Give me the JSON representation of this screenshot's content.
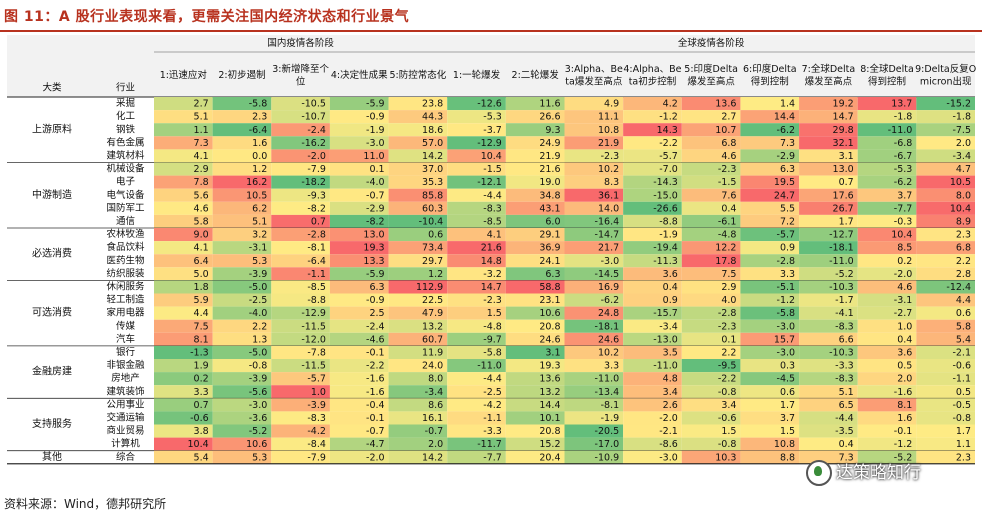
{
  "figure_title": "图 11：A 股行业表现来看，更需关注国内经济状态和行业景气",
  "source": "资料来源：Wind，德邦研究所",
  "watermark": "达策略知行",
  "colors": {
    "title": "#b8321f",
    "high": "#f8696b",
    "mid": "#ffeb84",
    "low": "#63be7b"
  },
  "chart_data": {
    "type": "heatmap",
    "color_scale": "red-high, yellow-mid, green-low (per column)",
    "group_headers": [
      "国内疫情各阶段",
      "全球疫情各阶段"
    ],
    "row_header_labels": [
      "大类",
      "行业"
    ],
    "columns": [
      "1:迅速应对",
      "2:初步遏制",
      "3:新增降至个位",
      "4:决定性成果",
      "5:防控常态化",
      "1:一轮爆发",
      "2:二轮爆发",
      "3:Alpha、Beta爆发至高点",
      "4:Alpha、Beta初步控制",
      "5:印度Delta爆发至高点",
      "6:印度Delta得到控制",
      "7:全球Delta爆发至高点",
      "8:全球Delta得到控制",
      "9:Delta反复Omicron出现"
    ],
    "groups": [
      {
        "name": "上游原料",
        "rows": [
          {
            "industry": "采掘",
            "values": [
              2.7,
              -5.8,
              -10.5,
              -5.9,
              23.8,
              -12.6,
              11.6,
              4.9,
              4.2,
              13.6,
              1.4,
              19.2,
              13.7,
              -15.2
            ]
          },
          {
            "industry": "化工",
            "values": [
              5.1,
              2.3,
              -10.7,
              -0.9,
              44.3,
              -5.3,
              26.6,
              11.1,
              -1.2,
              2.7,
              14.4,
              14.7,
              -1.8,
              -1.8
            ]
          },
          {
            "industry": "钢铁",
            "values": [
              1.1,
              -6.4,
              -2.4,
              -1.9,
              18.6,
              -3.7,
              9.3,
              10.8,
              14.3,
              10.7,
              -6.2,
              29.8,
              -11.0,
              -7.5
            ]
          },
          {
            "industry": "有色金属",
            "values": [
              7.3,
              1.6,
              -16.2,
              -3.0,
              57.0,
              -12.9,
              24.9,
              21.9,
              -2.2,
              6.8,
              7.3,
              32.1,
              -6.8,
              2.0
            ]
          },
          {
            "industry": "建筑材料",
            "values": [
              4.1,
              0.0,
              -2.0,
              11.0,
              14.2,
              10.4,
              21.9,
              -2.3,
              -5.7,
              4.6,
              -2.9,
              3.1,
              -6.7,
              -3.4
            ]
          }
        ]
      },
      {
        "name": "中游制造",
        "rows": [
          {
            "industry": "机械设备",
            "values": [
              2.9,
              1.2,
              -7.9,
              0.1,
              37.0,
              -1.5,
              21.6,
              10.2,
              -7.0,
              -2.3,
              6.3,
              13.0,
              -5.3,
              4.7
            ]
          },
          {
            "industry": "电子",
            "values": [
              7.8,
              16.2,
              -18.2,
              -4.0,
              35.3,
              -12.1,
              19.0,
              8.3,
              -14.3,
              -1.5,
              19.5,
              0.7,
              -6.2,
              10.5
            ]
          },
          {
            "industry": "电气设备",
            "values": [
              5.6,
              10.5,
              -9.3,
              -0.7,
              85.8,
              -4.4,
              34.8,
              36.1,
              -15.0,
              7.6,
              24.7,
              17.6,
              3.7,
              8.0
            ]
          },
          {
            "industry": "国防军工",
            "values": [
              4.6,
              6.2,
              -8.2,
              -2.9,
              60.3,
              -8.3,
              43.1,
              14.0,
              -26.6,
              0.4,
              5.5,
              26.7,
              -7.7,
              10.4
            ]
          },
          {
            "industry": "通信",
            "values": [
              5.8,
              5.1,
              0.7,
              -8.2,
              -10.4,
              -8.5,
              6.0,
              -16.4,
              -8.8,
              -6.1,
              7.2,
              1.7,
              -0.3,
              8.9
            ]
          }
        ]
      },
      {
        "name": "必选消费",
        "rows": [
          {
            "industry": "农林牧渔",
            "values": [
              9.0,
              3.2,
              -2.8,
              13.0,
              0.6,
              4.1,
              29.1,
              -14.7,
              -1.9,
              -4.8,
              -5.7,
              -12.7,
              10.4,
              2.3
            ]
          },
          {
            "industry": "食品饮料",
            "values": [
              4.1,
              -3.1,
              -8.1,
              19.3,
              73.4,
              21.6,
              36.9,
              21.7,
              -19.4,
              12.2,
              0.9,
              -18.1,
              8.5,
              6.8
            ]
          },
          {
            "industry": "医药生物",
            "values": [
              6.4,
              5.3,
              -6.4,
              13.3,
              29.7,
              14.8,
              24.1,
              -3.0,
              -11.3,
              17.8,
              -2.8,
              -11.0,
              0.2,
              2.2
            ]
          },
          {
            "industry": "纺织服装",
            "values": [
              5.0,
              -3.9,
              -1.1,
              -5.9,
              1.2,
              -3.2,
              6.3,
              -14.5,
              3.6,
              7.5,
              3.3,
              -5.2,
              -2.0,
              2.8
            ]
          }
        ]
      },
      {
        "name": "可选消费",
        "rows": [
          {
            "industry": "休闲服务",
            "values": [
              1.8,
              -5.0,
              -8.5,
              6.3,
              112.9,
              14.7,
              58.8,
              16.9,
              0.4,
              2.9,
              -5.1,
              -10.3,
              4.6,
              -12.4
            ]
          },
          {
            "industry": "轻工制造",
            "values": [
              5.9,
              -2.5,
              -8.8,
              -0.9,
              22.5,
              -2.3,
              23.1,
              -6.2,
              0.9,
              4.0,
              -1.2,
              -1.7,
              -3.1,
              4.4
            ]
          },
          {
            "industry": "家用电器",
            "values": [
              4.4,
              -4.0,
              -12.9,
              2.5,
              47.9,
              1.5,
              10.6,
              24.8,
              -15.7,
              -2.8,
              -5.8,
              -4.1,
              -2.7,
              0.6
            ]
          },
          {
            "industry": "传媒",
            "values": [
              7.5,
              2.2,
              -11.5,
              -2.4,
              13.2,
              -4.8,
              20.8,
              -18.1,
              -3.4,
              -2.3,
              -3.0,
              -8.3,
              1.0,
              5.8
            ]
          },
          {
            "industry": "汽车",
            "values": [
              8.1,
              1.3,
              -12.0,
              -4.6,
              60.7,
              -9.7,
              24.6,
              24.6,
              -13.0,
              0.1,
              15.7,
              6.6,
              0.4,
              5.4
            ]
          }
        ]
      },
      {
        "name": "金融房建",
        "rows": [
          {
            "industry": "银行",
            "values": [
              -1.3,
              -5.0,
              -7.8,
              -0.1,
              11.9,
              -5.8,
              3.1,
              10.2,
              3.5,
              2.2,
              -3.0,
              -10.3,
              3.6,
              -2.1
            ]
          },
          {
            "industry": "非银金融",
            "values": [
              1.9,
              -0.8,
              -11.5,
              -2.2,
              24.0,
              -11.0,
              19.3,
              3.3,
              -11.0,
              -9.5,
              0.3,
              -3.3,
              0.5,
              -0.6
            ]
          },
          {
            "industry": "房地产",
            "values": [
              0.2,
              -3.9,
              -5.7,
              -1.6,
              8.0,
              -4.4,
              13.6,
              -11.0,
              4.8,
              -2.2,
              -4.5,
              -8.3,
              2.0,
              -1.1
            ]
          },
          {
            "industry": "建筑装饰",
            "values": [
              3.3,
              -5.6,
              1.0,
              -1.6,
              -3.4,
              -2.5,
              13.2,
              -13.4,
              3.4,
              -0.8,
              0.6,
              5.1,
              -1.6,
              0.5
            ]
          }
        ]
      },
      {
        "name": "支持服务",
        "rows": [
          {
            "industry": "公用事业",
            "values": [
              0.7,
              -3.0,
              -3.9,
              -0.4,
              8.6,
              -4.2,
              14.4,
              -8.1,
              2.6,
              3.4,
              1.7,
              6.5,
              8.1,
              -0.5
            ]
          },
          {
            "industry": "交通运输",
            "values": [
              -0.6,
              -3.6,
              -8.3,
              -0.1,
              16.1,
              -1.1,
              10.1,
              -1.9,
              -2.0,
              -0.6,
              3.7,
              -4.4,
              1.6,
              -0.8
            ]
          },
          {
            "industry": "商业贸易",
            "values": [
              3.8,
              -5.2,
              -4.2,
              -0.7,
              -0.7,
              -3.3,
              20.8,
              -20.5,
              -2.1,
              1.5,
              1.5,
              -3.5,
              -0.1,
              1.7
            ]
          },
          {
            "industry": "计算机",
            "values": [
              10.4,
              10.6,
              -8.4,
              -4.7,
              2.0,
              -11.7,
              15.2,
              -17.0,
              -8.6,
              -0.8,
              10.8,
              0.4,
              -1.2,
              1.1
            ]
          }
        ]
      },
      {
        "name": "其他",
        "rows": [
          {
            "industry": "综合",
            "values": [
              5.4,
              5.3,
              -7.9,
              -2.0,
              14.2,
              -7.7,
              20.4,
              -10.9,
              -3.0,
              10.3,
              8.8,
              7.3,
              -5.2,
              2.3
            ]
          }
        ]
      }
    ]
  }
}
